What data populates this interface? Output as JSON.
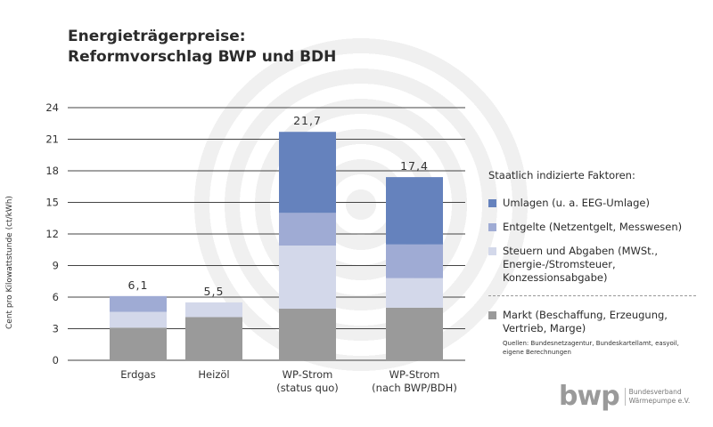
{
  "title": {
    "line1": "Energieträgerpreise:",
    "line2": "Reformvorschlag BWP und BDH"
  },
  "legend": {
    "header": "Staatlich indizierte Faktoren:",
    "items": [
      {
        "key": "umlagen",
        "label": "Umlagen (u. a. EEG-Umlage)",
        "color": "#6582bd"
      },
      {
        "key": "entgelte",
        "label": "Entgelte (Netzentgelt, Messwesen)",
        "color": "#9fabd4"
      },
      {
        "key": "steuern",
        "label": "Steuern und Abgaben (MWSt., Energie-/Stromsteuer, Konzessionsabgabe)",
        "color": "#d3d8ea"
      },
      {
        "key": "markt",
        "label": "Markt (Beschaffung, Erzeugung, Vertrieb, Marge)",
        "color": "#9a9a9a"
      }
    ],
    "source": "Quellen: Bundesnetzagentur, Bundeskartellamt, easyoil, eigene Berechnungen"
  },
  "logo": {
    "word": "bwp",
    "line1": "Bundesverband",
    "line2": "Wärmepumpe e.V."
  },
  "chart_data": {
    "type": "bar",
    "stacked": true,
    "title": "Energieträgerpreise: Reformvorschlag BWP und BDH",
    "ylabel": "Cent pro Kilowattstunde (ct/kWh)",
    "xlabel": "",
    "ylim": [
      0,
      24
    ],
    "yticks": [
      0,
      3,
      6,
      9,
      12,
      15,
      18,
      21,
      24
    ],
    "grid": true,
    "legend_position": "right",
    "categories": [
      [
        "Erdgas"
      ],
      [
        "Heizöl"
      ],
      [
        "WP-Strom",
        "(status quo)"
      ],
      [
        "WP-Strom",
        "(nach BWP/BDH)"
      ]
    ],
    "totals": [
      "6,1",
      "5,5",
      "21,7",
      "17,4"
    ],
    "series": [
      {
        "name": "Markt (Beschaffung, Erzeugung, Vertrieb, Marge)",
        "color": "#9a9a9a",
        "values": [
          3.1,
          4.1,
          4.9,
          5.0
        ]
      },
      {
        "name": "Steuern und Abgaben (MWSt., Energie-/Stromsteuer, Konzessionsabgabe)",
        "color": "#d3d8ea",
        "values": [
          1.5,
          1.4,
          6.0,
          2.8
        ]
      },
      {
        "name": "Entgelte (Netzentgelt, Messwesen)",
        "color": "#9fabd4",
        "values": [
          1.5,
          0,
          3.1,
          3.2
        ]
      },
      {
        "name": "Umlagen (u. a. EEG-Umlage)",
        "color": "#6582bd",
        "values": [
          0,
          0,
          7.7,
          6.4
        ]
      }
    ]
  }
}
